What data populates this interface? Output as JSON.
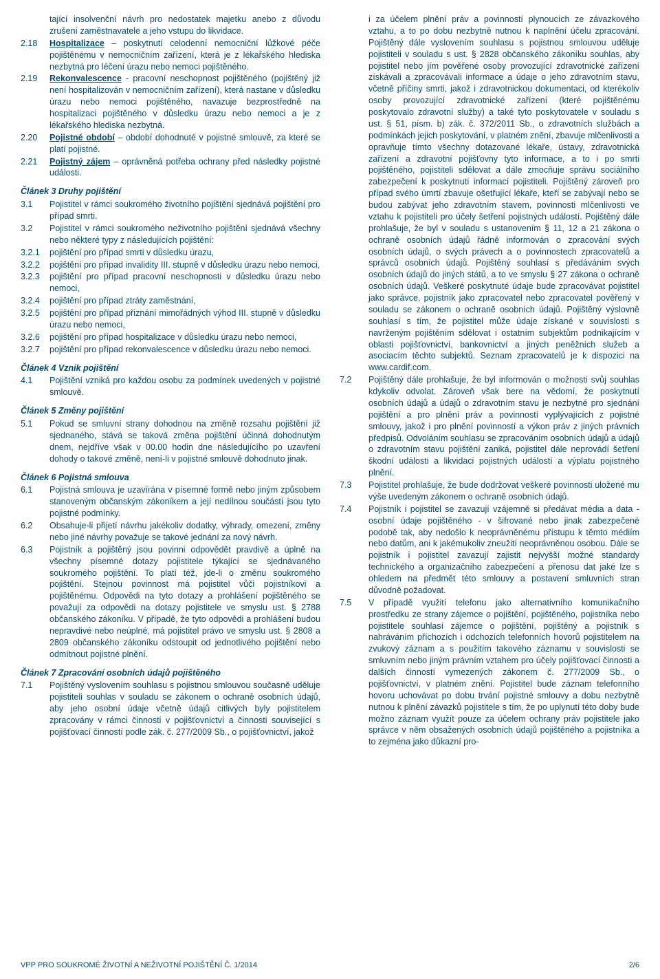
{
  "colors": {
    "text": "#004a6e",
    "bg": "#ffffff"
  },
  "typography": {
    "fontsize_pt": 9.5,
    "heading_style": "italic-bold"
  },
  "left": {
    "cont_2_17": "tající insolvenční návrh pro nedostatek majetku anebo z důvodu zrušení zaměstnavatele a jeho vstupu do likvidace.",
    "n218": "2.18",
    "t218a": "Hospitalizace",
    "t218b": " – poskytnutí celodenní nemocniční lůžkové péče pojištěnému v nemocničním zařízení, která je z lékařského hlediska nezbytná pro léčení úrazu nebo nemoci pojištěného.",
    "n219": "2.19",
    "t219a": "Rekonvalescence",
    "t219b": " - pracovní neschopnost pojištěného (pojištěný již není hospitalizován v nemocničním zařízení), která nastane v důsledku úrazu nebo nemoci pojištěného, navazuje bezprostředně na hospitalizaci pojištěného v důsledku úrazu nebo nemoci a je z lékařského hlediska nezbytná.",
    "n220": "2.20",
    "t220a": "Pojistné období",
    "t220b": " – období dohodnuté v pojistné smlouvě, za které se platí pojistné.",
    "n221": "2.21",
    "t221a": "Pojistný zájem",
    "t221b": " – oprávněná potřeba ochrany před následky pojistné události.",
    "h3": "Článek 3 Druhy pojištění",
    "n31": "3.1",
    "t31": "Pojistitel v rámci soukromého životního pojištění sjednává pojištění pro případ smrti.",
    "n32": "3.2",
    "t32": "Pojistitel v rámci soukromého neživotního pojištění sjednává všechny nebo některé typy z následujících pojištění:",
    "n321": "3.2.1",
    "t321": "pojištění pro případ smrti v důsledku úrazu,",
    "n322": "3.2.2",
    "t322": "pojištění pro případ invalidity III. stupně v důsledku úrazu nebo nemoci,",
    "n323": "3.2.3",
    "t323": "pojištění pro případ pracovní neschopnosti v důsledku úrazu nebo nemoci,",
    "n324": "3.2.4",
    "t324": "pojištění pro případ ztráty zaměstnání,",
    "n325": "3.2.5",
    "t325": "pojištění pro případ přiznání mimořádných výhod III. stupně v důsledku úrazu nebo nemoci,",
    "n326": "3.2.6",
    "t326": "pojištění pro případ hospitalizace v důsledku úrazu nebo nemoci,",
    "n327": "3.2.7",
    "t327": "pojištění pro případ rekonvalescence v důsledku úrazu nebo nemoci.",
    "h4": "Článek 4 Vznik pojištění",
    "n41": "4.1",
    "t41": "Pojištění vzniká pro každou osobu za podmínek uvedených v pojistné smlouvě.",
    "h5": "Článek 5 Změny pojištění",
    "n51": "5.1",
    "t51": "Pokud se smluvní strany dohodnou na změně rozsahu pojištění již sjednaného, stává se taková změna pojištění účinná dohodnutým dnem, nejdříve však v 00.00 hodin dne následujícího po uzavření dohody o takové změně, není-li v pojistné smlouvě dohodnuto jinak.",
    "h6": "Článek 6 Pojistná smlouva",
    "n61": "6.1",
    "t61": "Pojistná smlouva je uzavírána v písemné formě nebo jiným způsobem stanoveným občanským zákoníkem a její nedílnou součástí jsou tyto pojistné podmínky.",
    "n62": "6.2",
    "t62": "Obsahuje-li přijetí návrhu jakékoliv dodatky, výhrady, omezení, změny nebo jiné návrhy považuje se takové jednání za nový návrh.",
    "n63": "6.3",
    "t63": "Pojistník a pojištěný jsou povinni odpovědět pravdivě a úplně na všechny písemné dotazy pojistitele týkající se sjednávaného soukromého pojištění. To platí též, jde-li o změnu soukromého pojištění. Stejnou povinnost má pojistitel vůči pojistníkovi a pojištěnému. Odpovědi na tyto dotazy a prohlášení pojištěného se považují za odpovědi na dotazy pojistitele ve smyslu ust. § 2788 občanského zákoníku. V případě, že tyto odpovědi a prohlášení budou nepravdivé nebo neúplné, má pojistitel právo ve smyslu ust. § 2808 a 2809 občanského zákoníku odstoupit od jednotlivého pojištění nebo odmítnout pojistné plnění.",
    "h7": "Článek 7 Zpracování osobních údajů pojištěného",
    "n71": "7.1",
    "t71": "Pojištěný vyslovením souhlasu s pojistnou smlouvou současně uděluje pojistiteli souhlas v souladu se zákonem o ochraně osobních údajů, aby jeho osobní údaje včetně údajů citlivých byly pojistitelem zpracovány v rámci činnosti v pojišťovnictví a činnosti související s pojišťovací činností podle zák. č. 277/2009 Sb., o pojišťovnictví, jakož"
  },
  "right": {
    "cont71": "i za účelem plnění práv a povinností plynoucích ze závazkového vztahu, a to po dobu nezbytně nutnou k naplnění účelu zpracování. Pojištěný dále vyslovením souhlasu s pojistnou smlouvou uděluje pojistiteli v souladu s ust. § 2828 občanského zákoníku souhlas, aby pojistitel nebo jím pověřené osoby provozující zdravotnické zařízení získávali a zpracovávali informace a údaje o jeho zdravotním stavu, včetně příčiny smrti, jakož i zdravotnickou dokumentaci, od kterékoliv osoby provozující zdravotnické zařízení (které pojištěnému poskytovalo zdravotní služby) a také tyto poskytovatele v souladu s ust. § 51, písm. b) zák. č. 372/2011 Sb., o zdravotních službách a podmínkách jejich poskytování, v platném znění, zbavuje mlčenlivosti a opravňuje tímto všechny dotazované lékaře, ústavy, zdravotnická zařízení a zdravotní pojišťovny tyto informace, a to i po smrti pojištěného, pojistiteli sdělovat a dále zmocňuje správu sociálního zabezpečení k poskytnutí informací pojistiteli. Pojištěný zároveň pro případ svého úmrtí zbavuje ošetřující lékaře, kteří se zabývají nebo se budou zabývat jeho zdravotním stavem, povinnosti mlčenlivosti ve vztahu k pojistiteli pro účely šetření pojistných událostí. Pojištěný dále prohlašuje, že byl v souladu s ustanovením § 11, 12 a 21 zákona o ochraně osobních údajů řádně informován o zpracování svých osobních údajů, o svých právech a o povinnostech zpracovatelů a správců osobních údajů. Pojištěný souhlasí s předáváním svých osobních údajů do jiných států, a to ve smyslu § 27 zákona o ochraně osobních údajů. Veškeré poskytnuté údaje bude zpracovávat pojistitel jako správce, pojistník jako zpracovatel nebo zpracovatel pověřený v souladu se zákonem o ochraně osobních údajů. Pojištěný výslovně souhlasí s tím, že pojistitel může údaje získané v souvislosti s navrženým pojištěním sdělovat i ostatním subjektům podnikajícím v oblasti pojišťovnictví, bankovnictví a jiných peněžních služeb a asociacím těchto subjektů. Seznam zpracovatelů je k dispozici na www.cardif.com.",
    "n72": "7.2",
    "t72": "Pojištěný dále prohlašuje, že byl informován o možnosti svůj souhlas kdykoliv odvolat. Zároveň však bere na vědomí, že poskytnutí osobních údajů a údajů o zdravotním stavu je nezbytné pro sjednání pojištění a pro plnění práv a povinností vyplývajících z pojistné smlouvy, jakož i pro plnění povinností a výkon práv z jiných právních předpisů. Odvoláním souhlasu se zpracováním osobních údajů a údajů o zdravotním stavu pojištění zaniká, pojistitel dále neprovádí šetření škodní události a likvidaci pojistných událostí a výplatu pojistného plnění.",
    "n73": "7.3",
    "t73": "Pojistitel prohlašuje, že bude dodržovat veškeré povinnosti uložené mu výše uvedeným zákonem o ochraně osobních údajů.",
    "n74": "7.4",
    "t74": "Pojistník i pojistitel se zavazují vzájemně si předávat média a data - osobní údaje pojištěného - v šifrované nebo jinak zabezpečené podobě tak, aby nedošlo k neoprávněnému přístupu k těmto médiím nebo datům, ani k jakémukoliv zneužití neoprávněnou osobou. Dále se pojistník i pojistitel zavazují zajistit nejvyšší možné standardy technického a organizačního zabezpečení a přenosu dat jaké lze s ohledem na předmět této smlouvy a postavení smluvních stran důvodně požadovat.",
    "n75": "7.5",
    "t75": "V případě využití telefonu jako alternativního komunikačního prostředku ze strany zájemce o pojištění, pojištěného, pojistníka nebo pojistitele souhlasí zájemce o pojištění, pojištěný a pojistník s nahráváním příchozích i odchozích telefonních hovorů pojistitelem na zvukový záznam a s použitím takového záznamu v souvislosti se smluvním nebo jiným právním vztahem pro účely pojišťovací činnosti a dalších činností vymezených zákonem č. 277/2009 Sb., o pojišťovnictví, v platném znění. Pojistitel bude záznam telefonního hovoru uchovávat po dobu trvání pojistné smlouvy a dobu nezbytně nutnou k plnění závazků pojistitele s tím, že po uplynutí této doby bude možno záznam využít pouze za účelem ochrany práv pojistitele jako správce v něm obsažených osobních údajů pojištěného a pojistníka a to zejména jako důkazní pro-"
  },
  "footer": {
    "left": "VPP PRO SOUKROMÉ ŽIVOTNÍ A NEŽIVOTNÍ POJIŠTĚNÍ Č. 1/2014",
    "right": "2/6"
  }
}
